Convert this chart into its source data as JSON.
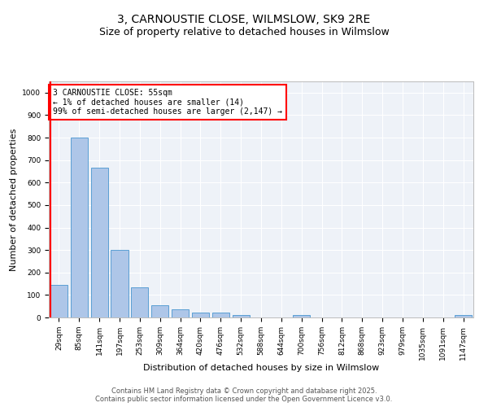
{
  "title": "3, CARNOUSTIE CLOSE, WILMSLOW, SK9 2RE",
  "subtitle": "Size of property relative to detached houses in Wilmslow",
  "xlabel": "Distribution of detached houses by size in Wilmslow",
  "ylabel": "Number of detached properties",
  "categories": [
    "29sqm",
    "85sqm",
    "141sqm",
    "197sqm",
    "253sqm",
    "309sqm",
    "364sqm",
    "420sqm",
    "476sqm",
    "532sqm",
    "588sqm",
    "644sqm",
    "700sqm",
    "756sqm",
    "812sqm",
    "868sqm",
    "923sqm",
    "979sqm",
    "1035sqm",
    "1091sqm",
    "1147sqm"
  ],
  "values": [
    145,
    800,
    665,
    300,
    135,
    55,
    35,
    20,
    20,
    10,
    0,
    0,
    10,
    0,
    0,
    0,
    0,
    0,
    0,
    0,
    10
  ],
  "bar_color": "#aec6e8",
  "bar_edge_color": "#5a9fd4",
  "annotation_box_text": "3 CARNOUSTIE CLOSE: 55sqm\n← 1% of detached houses are smaller (14)\n99% of semi-detached houses are larger (2,147) →",
  "annotation_box_color": "white",
  "annotation_box_edge_color": "red",
  "vline_color": "red",
  "ylim": [
    0,
    1050
  ],
  "yticks": [
    0,
    100,
    200,
    300,
    400,
    500,
    600,
    700,
    800,
    900,
    1000
  ],
  "background_color": "#eef2f8",
  "footer_text": "Contains HM Land Registry data © Crown copyright and database right 2025.\nContains public sector information licensed under the Open Government Licence v3.0.",
  "title_fontsize": 10,
  "subtitle_fontsize": 9,
  "axis_label_fontsize": 8,
  "tick_fontsize": 6.5,
  "annotation_fontsize": 7,
  "footer_fontsize": 6
}
